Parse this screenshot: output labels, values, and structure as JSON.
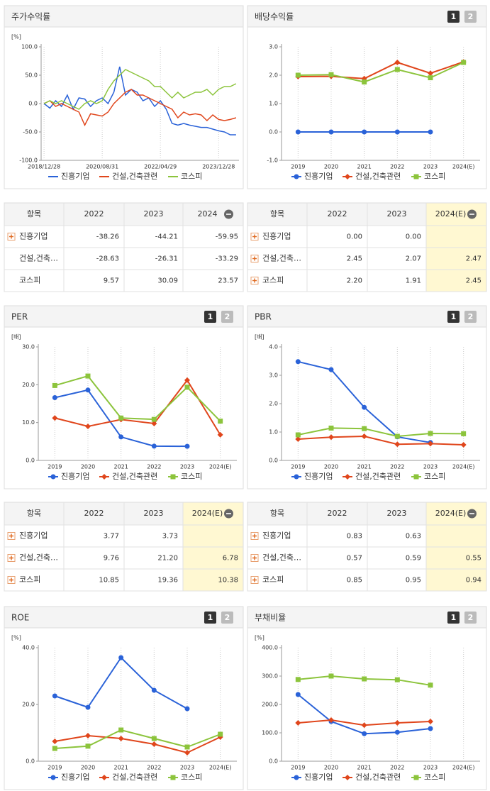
{
  "chart_data": [
    {
      "type": "line",
      "title": "주가수익률",
      "y_unit": "[%]",
      "categories": [
        "2018/12/28",
        null,
        null,
        null,
        null,
        null,
        null,
        null,
        null,
        null,
        "2020/08/31",
        null,
        null,
        null,
        null,
        null,
        null,
        null,
        null,
        null,
        "2022/04/29",
        null,
        null,
        null,
        null,
        null,
        null,
        null,
        null,
        null,
        "2023/12/28",
        null,
        null,
        null
      ],
      "ylim": [
        -100,
        100
      ],
      "yticks": [
        {
          "value": -100,
          "label": "-100.0"
        },
        {
          "value": -50,
          "label": "-50.0"
        },
        {
          "value": 0,
          "label": "0.0"
        },
        {
          "value": 50,
          "label": "50.0"
        },
        {
          "value": 100,
          "label": "100.0"
        }
      ],
      "series": [
        {
          "name": "진흥기업",
          "color": "#2a62d8",
          "values": [
            0,
            -8,
            5,
            -5,
            15,
            -10,
            10,
            8,
            -5,
            5,
            10,
            0,
            20,
            65,
            15,
            25,
            20,
            5,
            10,
            -5,
            5,
            -10,
            -35,
            -38,
            -35,
            -38,
            -40,
            -42,
            -42,
            -45,
            -48,
            -50,
            -55,
            -55
          ]
        },
        {
          "name": "건설,건축관련",
          "color": "#e0461c",
          "values": [
            0,
            5,
            -5,
            0,
            -5,
            -10,
            -15,
            -38,
            -18,
            -20,
            -22,
            -15,
            0,
            10,
            20,
            25,
            15,
            15,
            10,
            5,
            0,
            -5,
            -10,
            -25,
            -15,
            -20,
            -18,
            -20,
            -30,
            -20,
            -28,
            -30,
            -28,
            -25
          ]
        },
        {
          "name": "코스피",
          "color": "#8cc43c",
          "values": [
            0,
            5,
            0,
            5,
            0,
            -5,
            -10,
            0,
            5,
            0,
            5,
            25,
            40,
            50,
            60,
            55,
            50,
            45,
            40,
            30,
            30,
            20,
            10,
            20,
            10,
            15,
            20,
            20,
            25,
            15,
            25,
            30,
            30,
            35
          ]
        }
      ]
    },
    {
      "type": "line",
      "title": "배당수익률",
      "pager": [
        "1",
        "2"
      ],
      "y_unit": null,
      "categories": [
        "2019",
        "2020",
        "2021",
        "2022",
        "2023",
        "2024(E)"
      ],
      "ylim": [
        -1,
        3
      ],
      "yticks": [
        {
          "value": -1,
          "label": "-1.0"
        },
        {
          "value": 0,
          "label": "0.0"
        },
        {
          "value": 1,
          "label": "1.0"
        },
        {
          "value": 2,
          "label": "2.0"
        },
        {
          "value": 3,
          "label": "3.0"
        }
      ],
      "series": [
        {
          "name": "진흥기업",
          "color": "#2a62d8",
          "marker": "circle",
          "values": [
            0,
            0,
            0,
            0,
            0,
            null
          ]
        },
        {
          "name": "건설,건축관련",
          "color": "#e0461c",
          "marker": "diamond",
          "values": [
            1.95,
            1.96,
            1.88,
            2.45,
            2.07,
            2.47
          ]
        },
        {
          "name": "코스피",
          "color": "#8cc43c",
          "marker": "square",
          "values": [
            2.0,
            2.02,
            1.76,
            2.2,
            1.91,
            2.45
          ]
        }
      ]
    },
    {
      "type": "line",
      "title": "PER",
      "pager": [
        "1",
        "2"
      ],
      "y_unit": "[배]",
      "categories": [
        "2019",
        "2020",
        "2021",
        "2022",
        "2023",
        "2024(E)"
      ],
      "ylim": [
        0,
        30
      ],
      "yticks": [
        {
          "value": 0,
          "label": "0.0"
        },
        {
          "value": 10,
          "label": "10.0"
        },
        {
          "value": 20,
          "label": "20.0"
        },
        {
          "value": 30,
          "label": "30.0"
        }
      ],
      "series": [
        {
          "name": "진흥기업",
          "color": "#2a62d8",
          "marker": "circle",
          "values": [
            16.6,
            18.6,
            6.2,
            3.77,
            3.73,
            null
          ]
        },
        {
          "name": "건설,건축관련",
          "color": "#e0461c",
          "marker": "diamond",
          "values": [
            11.2,
            9.0,
            10.8,
            9.76,
            21.2,
            6.78
          ]
        },
        {
          "name": "코스피",
          "color": "#8cc43c",
          "marker": "square",
          "values": [
            19.8,
            22.3,
            11.2,
            10.85,
            19.36,
            10.38
          ]
        }
      ]
    },
    {
      "type": "line",
      "title": "PBR",
      "pager": [
        "1",
        "2"
      ],
      "y_unit": "[배]",
      "categories": [
        "2019",
        "2020",
        "2021",
        "2022",
        "2023",
        "2024(E)"
      ],
      "ylim": [
        0,
        4
      ],
      "yticks": [
        {
          "value": 0,
          "label": "0.0"
        },
        {
          "value": 1,
          "label": "1.0"
        },
        {
          "value": 2,
          "label": "2.0"
        },
        {
          "value": 3,
          "label": "3.0"
        },
        {
          "value": 4,
          "label": "4.0"
        }
      ],
      "series": [
        {
          "name": "진흥기업",
          "color": "#2a62d8",
          "marker": "circle",
          "values": [
            3.48,
            3.2,
            1.87,
            0.83,
            0.63,
            null
          ]
        },
        {
          "name": "건설,건축관련",
          "color": "#e0461c",
          "marker": "diamond",
          "values": [
            0.75,
            0.82,
            0.85,
            0.57,
            0.59,
            0.55
          ]
        },
        {
          "name": "코스피",
          "color": "#8cc43c",
          "marker": "square",
          "values": [
            0.9,
            1.14,
            1.12,
            0.85,
            0.95,
            0.94
          ]
        }
      ]
    },
    {
      "type": "line",
      "title": "ROE",
      "pager": [
        "1",
        "2"
      ],
      "y_unit": "[%]",
      "categories": [
        "2019",
        "2020",
        "2021",
        "2022",
        "2023",
        "2024(E)"
      ],
      "ylim": [
        0,
        40
      ],
      "yticks": [
        {
          "value": 0,
          "label": "0.0"
        },
        {
          "value": 20,
          "label": "20.0"
        },
        {
          "value": 40,
          "label": "40.0"
        }
      ],
      "series": [
        {
          "name": "진흥기업",
          "color": "#2a62d8",
          "marker": "circle",
          "values": [
            23,
            19,
            36.5,
            25,
            18.5,
            null
          ]
        },
        {
          "name": "건설,건축관련",
          "color": "#e0461c",
          "marker": "diamond",
          "values": [
            7,
            9,
            8,
            6,
            3,
            8.5
          ]
        },
        {
          "name": "코스피",
          "color": "#8cc43c",
          "marker": "square",
          "values": [
            4.5,
            5.3,
            11,
            8,
            5,
            9.5
          ]
        }
      ]
    },
    {
      "type": "line",
      "title": "부채비율",
      "pager": [
        "1",
        "2"
      ],
      "y_unit": "[%]",
      "categories": [
        "2019",
        "2020",
        "2021",
        "2022",
        "2023",
        "2024(E)"
      ],
      "ylim": [
        0,
        400
      ],
      "yticks": [
        {
          "value": 0,
          "label": "0.0"
        },
        {
          "value": 100,
          "label": "100.0"
        },
        {
          "value": 200,
          "label": "200.0"
        },
        {
          "value": 300,
          "label": "300.0"
        },
        {
          "value": 400,
          "label": "400.0"
        }
      ],
      "series": [
        {
          "name": "진흥기업",
          "color": "#2a62d8",
          "marker": "circle",
          "values": [
            235,
            140,
            97,
            102,
            115,
            null
          ]
        },
        {
          "name": "건설,건축관련",
          "color": "#e0461c",
          "marker": "diamond",
          "values": [
            135,
            145,
            127,
            135,
            140,
            null
          ]
        },
        {
          "name": "코스피",
          "color": "#8cc43c",
          "marker": "square",
          "values": [
            288,
            300,
            290,
            287,
            268,
            null
          ]
        }
      ]
    }
  ],
  "tables": [
    {
      "highlight": false,
      "header": [
        "항목",
        "2022",
        "2023",
        "2024"
      ],
      "rows": [
        {
          "name": "진흥기업",
          "expand": true,
          "cells": [
            "-38.26",
            "-44.21",
            "-59.95"
          ]
        },
        {
          "name": "건설,건축…",
          "expand": false,
          "cells": [
            "-28.63",
            "-26.31",
            "-33.29"
          ]
        },
        {
          "name": "코스피",
          "expand": false,
          "cells": [
            "9.57",
            "30.09",
            "23.57"
          ]
        }
      ]
    },
    {
      "highlight": true,
      "header": [
        "항목",
        "2022",
        "2023",
        "2024(E)"
      ],
      "rows": [
        {
          "name": "진흥기업",
          "expand": true,
          "cells": [
            "0.00",
            "0.00",
            null
          ]
        },
        {
          "name": "건설,건축…",
          "expand": true,
          "cells": [
            "2.45",
            "2.07",
            "2.47"
          ]
        },
        {
          "name": "코스피",
          "expand": true,
          "cells": [
            "2.20",
            "1.91",
            "2.45"
          ]
        }
      ]
    },
    {
      "highlight": true,
      "header": [
        "항목",
        "2022",
        "2023",
        "2024(E)"
      ],
      "rows": [
        {
          "name": "진흥기업",
          "expand": true,
          "cells": [
            "3.77",
            "3.73",
            null
          ]
        },
        {
          "name": "건설,건축…",
          "expand": true,
          "cells": [
            "9.76",
            "21.20",
            "6.78"
          ]
        },
        {
          "name": "코스피",
          "expand": true,
          "cells": [
            "10.85",
            "19.36",
            "10.38"
          ]
        }
      ]
    },
    {
      "highlight": true,
      "header": [
        "항목",
        "2022",
        "2023",
        "2024(E)"
      ],
      "rows": [
        {
          "name": "진흥기업",
          "expand": true,
          "cells": [
            "0.83",
            "0.63",
            null
          ]
        },
        {
          "name": "건설,건축…",
          "expand": true,
          "cells": [
            "0.57",
            "0.59",
            "0.55"
          ]
        },
        {
          "name": "코스피",
          "expand": true,
          "cells": [
            "0.85",
            "0.95",
            "0.94"
          ]
        }
      ]
    }
  ]
}
